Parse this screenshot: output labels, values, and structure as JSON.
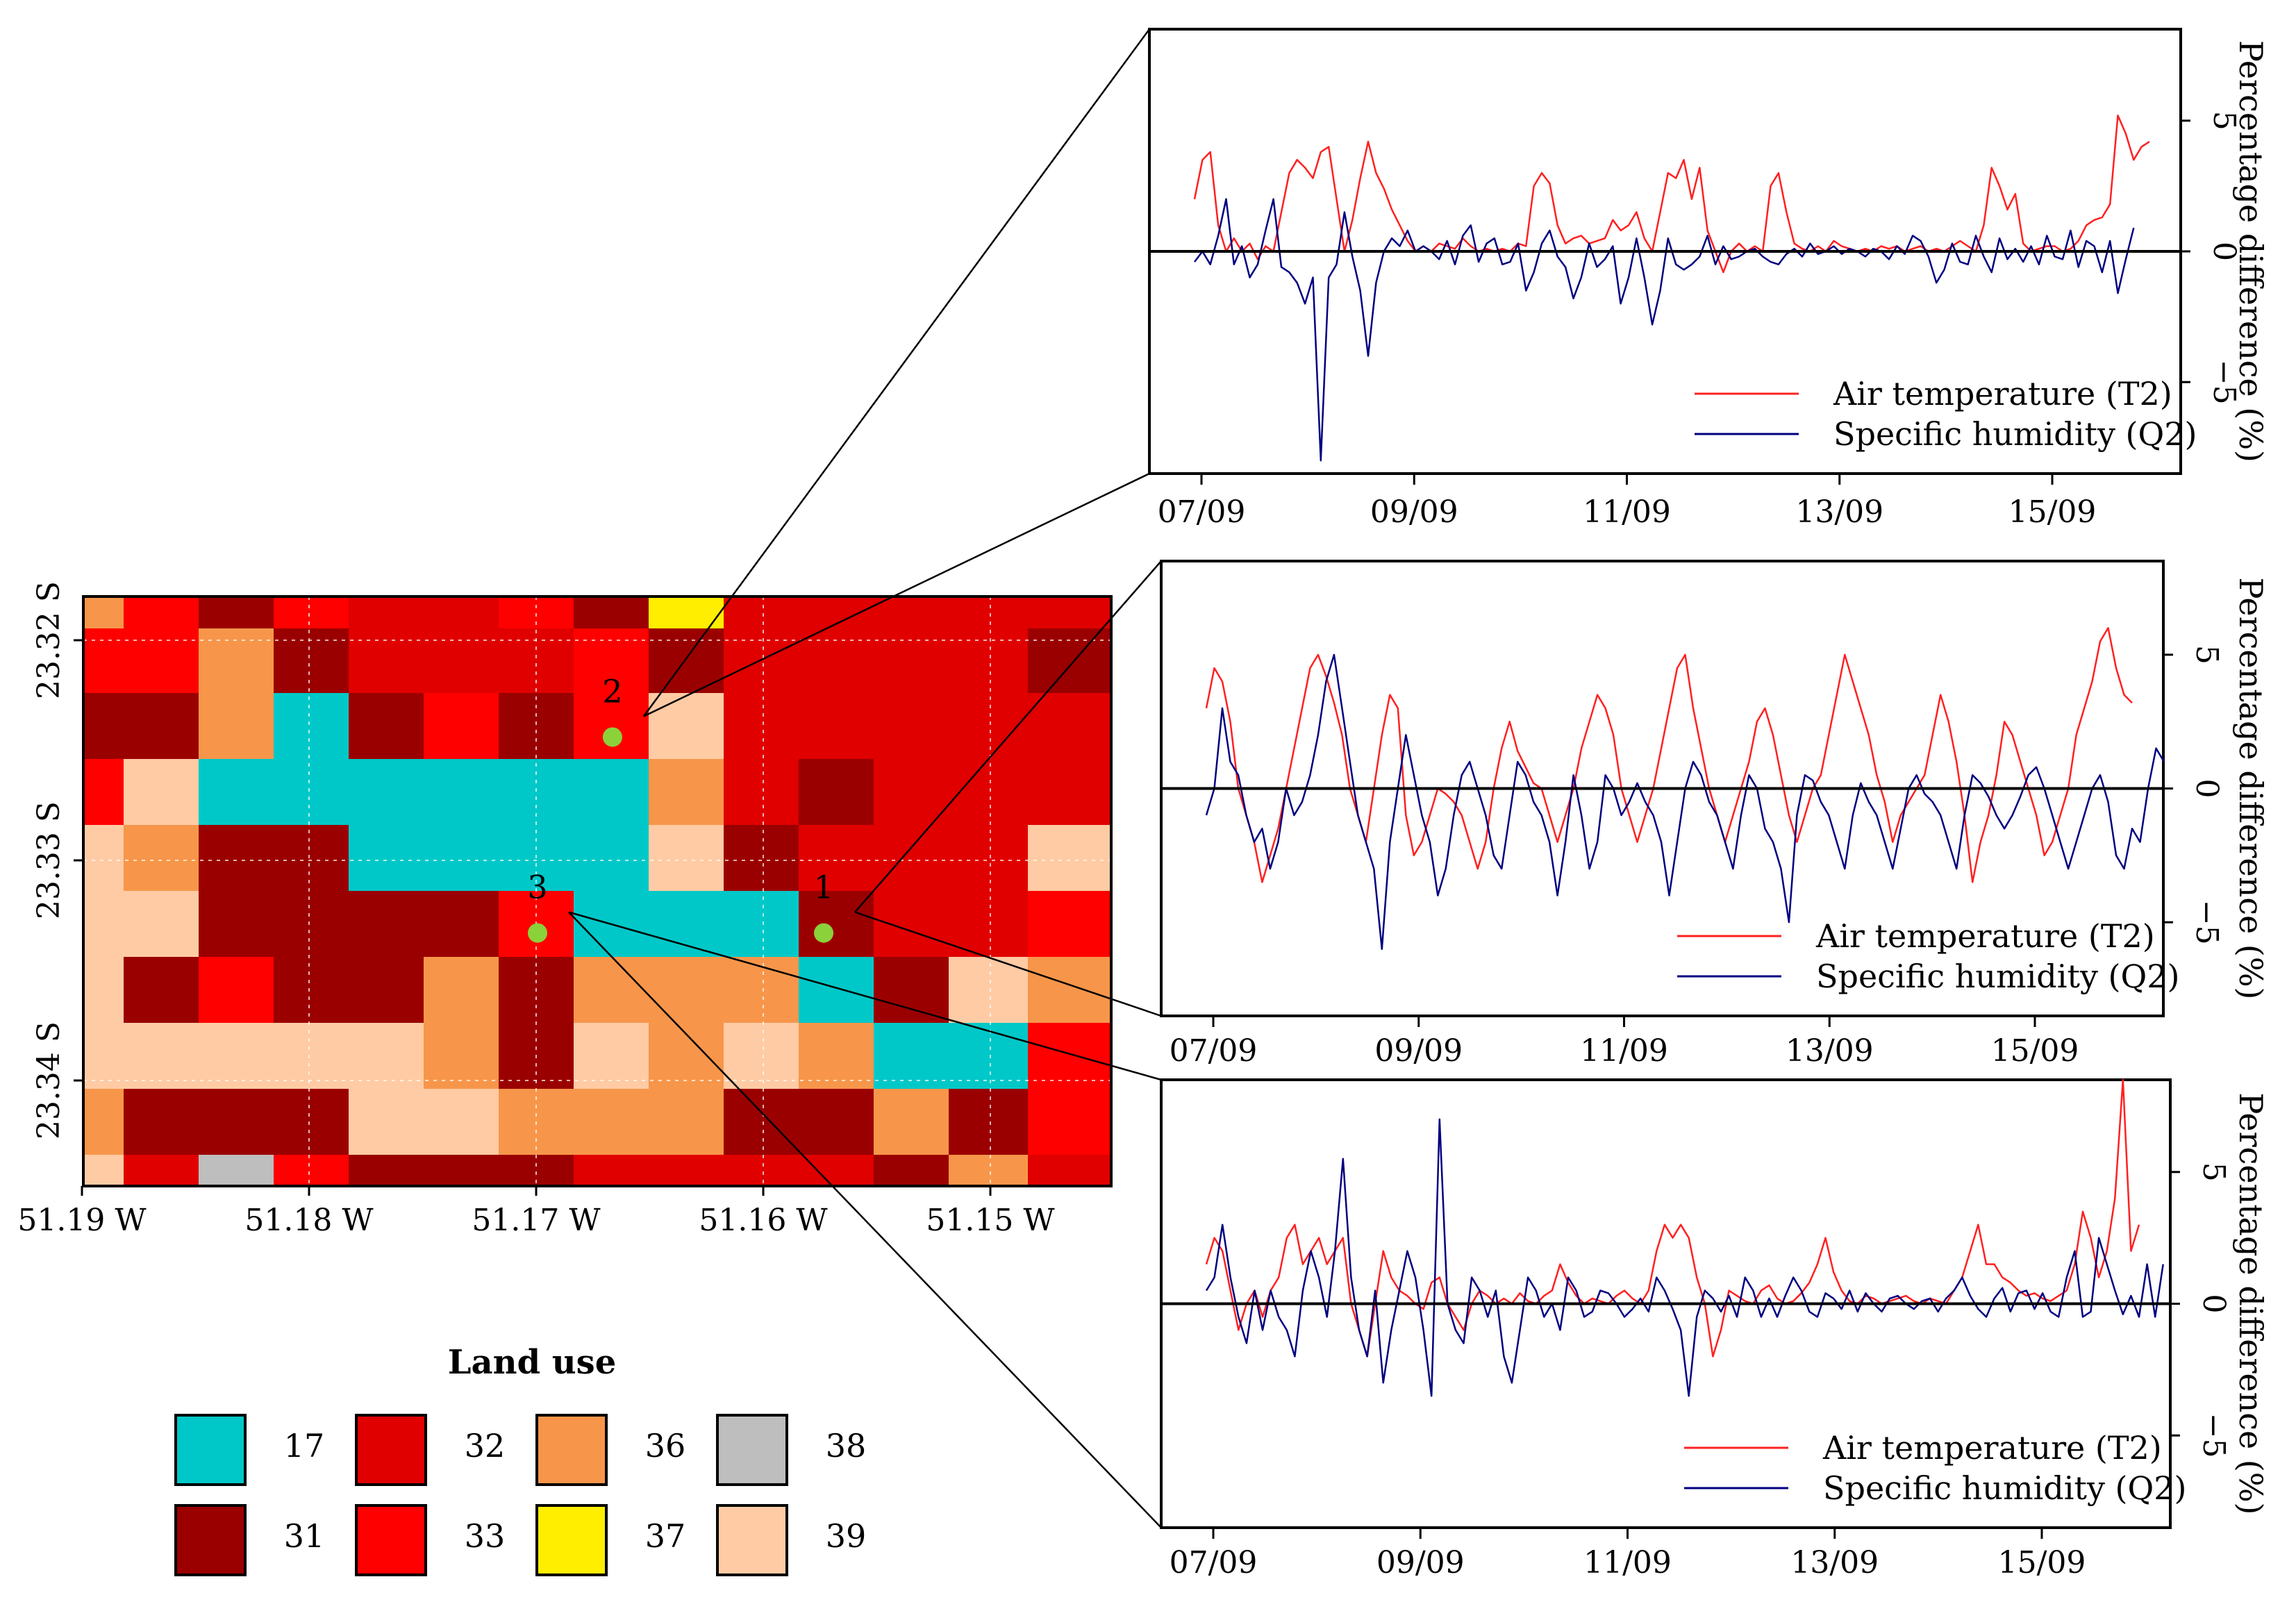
{
  "map": {
    "x_ticks": [
      "51.19 W",
      "51.18 W",
      "51.17 W",
      "51.16 W",
      "51.15 W"
    ],
    "y_ticks": [
      "23.32 S",
      "23.33 S",
      "23.34 S"
    ],
    "points": [
      {
        "label": "1",
        "lon": -51.1574,
        "lat": -23.3333
      },
      {
        "label": "2",
        "lon": -51.1667,
        "lat": -23.3244
      },
      {
        "label": "3",
        "lon": -51.17,
        "lat": -23.3333
      }
    ],
    "point_color": "#8bd13a",
    "grid": [
      "eacccaccccaccbaccc",
      "eaabaaacccaaaaaa",
      "abbeababcca",
      "aa"
    ]
  },
  "land_use": {
    "title": "Land use",
    "classes": [
      {
        "code": "17",
        "color": "#00c8c8"
      },
      {
        "code": "31",
        "color": "#9b0000"
      },
      {
        "code": "32",
        "color": "#e00000"
      },
      {
        "code": "33",
        "color": "#ff0000"
      },
      {
        "code": "36",
        "color": "#f7964a"
      },
      {
        "code": "37",
        "color": "#ffee00"
      },
      {
        "code": "38",
        "color": "#bebebe"
      },
      {
        "code": "39",
        "color": "#ffcba4"
      }
    ]
  },
  "chart_data": [
    {
      "type": "line",
      "point": "2",
      "ylabel": "Percentage difference (%)",
      "ylim": [
        -8.5,
        8.5
      ],
      "yticks": [
        5,
        0,
        -5
      ],
      "ytick_labels": [
        "5",
        "0",
        "−5"
      ],
      "xticks": [
        "07/09",
        "09/09",
        "11/09",
        "13/09",
        "15/09"
      ],
      "series": [
        {
          "name": "Air temperature (T2)",
          "color": "#ff2020",
          "values": [
            2,
            3.5,
            3.8,
            1,
            0,
            0.5,
            0,
            0.3,
            -0.3,
            0.2,
            0,
            1.5,
            3,
            3.5,
            3.2,
            2.8,
            3.8,
            4,
            2,
            0,
            1.2,
            2.8,
            4.2,
            3,
            2.4,
            1.6,
            1,
            0.4,
            0,
            0.2,
            0,
            0.3,
            0.2,
            0.1,
            0.5,
            0.2,
            0,
            0.1,
            0,
            0.1,
            0,
            0.3,
            0.2,
            2.5,
            3,
            2.6,
            1,
            0.3,
            0.5,
            0.6,
            0.3,
            0.4,
            0.5,
            1.2,
            0.8,
            1,
            1.5,
            0.5,
            0,
            1.5,
            3,
            2.8,
            3.5,
            2,
            3.2,
            0.8,
            0,
            -0.8,
            0,
            0.3,
            0,
            0.2,
            0,
            2.5,
            3,
            1.5,
            0.3,
            0.1,
            0,
            0.2,
            0,
            0.4,
            0.2,
            0.1,
            0,
            0.1,
            0,
            0.2,
            0.1,
            0.2,
            0,
            0.1,
            0.2,
            0,
            0.1,
            0,
            0.2,
            0.4,
            0.2,
            0,
            1,
            3.2,
            2.5,
            1.6,
            2.2,
            0.3,
            0,
            0.1,
            0.2,
            0.2,
            0,
            0.1,
            0.4,
            1,
            1.2,
            1.3,
            1.8,
            5.2,
            4.5,
            3.5,
            4,
            4.2
          ]
        },
        {
          "name": "Specific humidity (Q2)",
          "color": "#000080",
          "values": [
            -0.4,
            0,
            -0.5,
            0.6,
            2,
            -0.5,
            0.2,
            -1,
            -0.5,
            0.8,
            2,
            -0.6,
            -0.8,
            -1.2,
            -2,
            -1,
            -8,
            -1,
            -0.5,
            1.5,
            -0.2,
            -1.5,
            -4,
            -1.2,
            0,
            0.5,
            0.2,
            0.8,
            0,
            0.2,
            0,
            -0.3,
            0.4,
            -0.5,
            0.6,
            1,
            -0.4,
            0.3,
            0.5,
            -0.5,
            -0.4,
            0.3,
            -1.5,
            -0.8,
            0.3,
            0.8,
            -0.2,
            -0.6,
            -1.8,
            -1,
            0.3,
            -0.6,
            -0.3,
            0.2,
            -2,
            -1,
            0.5,
            -1,
            -2.8,
            -1.5,
            0.5,
            -0.5,
            -0.7,
            -0.5,
            -0.2,
            0.6,
            -0.5,
            0.2,
            -0.3,
            -0.2,
            0,
            0.1,
            -0.2,
            -0.4,
            -0.5,
            -0.1,
            0.1,
            -0.2,
            0.3,
            -0.1,
            0,
            0.2,
            -0.1,
            0.1,
            0,
            -0.2,
            0.1,
            0,
            -0.3,
            0.2,
            -0.1,
            0.6,
            0.4,
            -0.2,
            -1.2,
            -0.7,
            0.3,
            -0.4,
            -0.5,
            0.6,
            -0.2,
            -0.8,
            0.5,
            -0.3,
            0.1,
            -0.4,
            0.2,
            -0.5,
            0.6,
            -0.2,
            -0.3,
            0.8,
            -0.6,
            0.4,
            0.2,
            -0.8,
            0.4,
            -1.6,
            -0.3,
            0.9
          ]
        }
      ]
    },
    {
      "type": "line",
      "point": "1",
      "ylabel": "Percentage difference (%)",
      "ylim": [
        -8.5,
        8.5
      ],
      "yticks": [
        5,
        0,
        -5
      ],
      "ytick_labels": [
        "5",
        "0",
        "−5"
      ],
      "xticks": [
        "07/09",
        "09/09",
        "11/09",
        "13/09",
        "15/09"
      ],
      "series": [
        {
          "name": "Air temperature (T2)",
          "color": "#ff2020",
          "values": [
            3,
            4.5,
            4,
            2.5,
            0,
            -1,
            -2,
            -3.5,
            -2.5,
            -1.5,
            0,
            1.5,
            3,
            4.5,
            5,
            4.2,
            3.2,
            2,
            0,
            -1,
            -2,
            0,
            2,
            3.5,
            3,
            -1,
            -2.5,
            -2,
            -1,
            0,
            -0.2,
            -0.5,
            -1,
            -2,
            -3,
            -2,
            0,
            1.5,
            2.5,
            1.4,
            0.8,
            0.2,
            0,
            -1,
            -2,
            -1,
            0,
            1.5,
            2.5,
            3.5,
            3,
            2,
            0,
            -1,
            -2,
            -1,
            0,
            1.5,
            3,
            4.5,
            5,
            3,
            1.5,
            0,
            -1,
            -2,
            -1,
            0,
            1,
            2.5,
            3,
            2,
            0.5,
            -1,
            -2,
            -1,
            0,
            0.5,
            2,
            3.5,
            5,
            4,
            3,
            2,
            0.5,
            -0.5,
            -2,
            -1,
            -0.5,
            0,
            0.5,
            2,
            3.5,
            2.5,
            1,
            -1,
            -3.5,
            -2,
            -1,
            0.5,
            2.5,
            2,
            1,
            0,
            -1,
            -2.5,
            -2,
            -1,
            0,
            2,
            3,
            4,
            5.5,
            6,
            4.5,
            3.5,
            3.2
          ]
        },
        {
          "name": "Specific humidity (Q2)",
          "color": "#000080",
          "values": [
            -1,
            0,
            3,
            1,
            0.5,
            -1,
            -2,
            -1.5,
            -3,
            -2,
            0,
            -1,
            -0.5,
            0.5,
            2,
            4,
            5,
            3,
            1,
            -1,
            -2,
            -3,
            -6,
            -2,
            0,
            2,
            0.5,
            -1,
            -2,
            -4,
            -3,
            -1,
            0.5,
            1,
            0,
            -1,
            -2.5,
            -3,
            -1,
            1,
            0.5,
            -0.5,
            -1,
            -2,
            -4,
            -2,
            0.5,
            -1,
            -3,
            -2,
            0.5,
            0,
            -1,
            -0.5,
            0.2,
            -0.5,
            -1,
            -2,
            -4,
            -2,
            0,
            1,
            0.5,
            -0.5,
            -1,
            -2,
            -3,
            -1,
            0.5,
            0,
            -1.5,
            -2,
            -3,
            -5,
            -1,
            0.5,
            0.3,
            -0.5,
            -1,
            -2,
            -3,
            -1,
            0.2,
            -0.5,
            -1,
            -2,
            -3,
            -1.5,
            0,
            0.5,
            -0.2,
            -0.5,
            -1,
            -2,
            -3,
            -1,
            0.5,
            0.2,
            -0.3,
            -1,
            -1.5,
            -1,
            -0.3,
            0.5,
            0.8,
            0,
            -1,
            -2,
            -3,
            -2,
            -1,
            0,
            0.5,
            -0.5,
            -2.5,
            -3,
            -1.5,
            -2,
            0,
            1.5,
            1
          ]
        }
      ]
    },
    {
      "type": "line",
      "point": "3",
      "ylabel": "Percentage difference (%)",
      "ylim": [
        -8.5,
        8.5
      ],
      "yticks": [
        5,
        0,
        -5
      ],
      "ytick_labels": [
        "5",
        "0",
        "−5"
      ],
      "xticks": [
        "07/09",
        "09/09",
        "11/09",
        "13/09",
        "15/09"
      ],
      "series": [
        {
          "name": "Air temperature (T2)",
          "color": "#ff2020",
          "values": [
            1.5,
            2.5,
            2,
            0.5,
            -1,
            0,
            0.5,
            -0.5,
            0.5,
            1,
            2.5,
            3,
            1.5,
            2,
            2.5,
            1.5,
            2,
            2.5,
            0,
            -1,
            -2,
            0,
            2,
            1,
            0.5,
            0.3,
            0,
            -0.2,
            0.8,
            1,
            0,
            -0.5,
            -1,
            0,
            0.5,
            0.3,
            0,
            0.2,
            0,
            0.4,
            0.1,
            0,
            0.3,
            0.5,
            1.5,
            0.8,
            0.3,
            0,
            0.2,
            0.1,
            0,
            0.3,
            0.5,
            0.2,
            0,
            0.5,
            2,
            3,
            2.5,
            3,
            2.5,
            1,
            0,
            -2,
            -1,
            0.5,
            0.3,
            0.1,
            0,
            0.5,
            0.7,
            0.2,
            0,
            0.1,
            0.4,
            0.8,
            1.5,
            2.5,
            1.2,
            0.5,
            0.1,
            0,
            0.3,
            0.2,
            0,
            0.1,
            0.2,
            0.3,
            0.1,
            0,
            0.2,
            0.1,
            0,
            0.5,
            1,
            2,
            3,
            1.5,
            1.5,
            1,
            0.8,
            0.5,
            0.3,
            0.4,
            0.2,
            0.1,
            0.3,
            0.5,
            1.5,
            3.5,
            2.5,
            1,
            2,
            4,
            8.5,
            2,
            3
          ]
        },
        {
          "name": "Specific humidity (Q2)",
          "color": "#000080",
          "values": [
            0.5,
            1,
            3,
            1,
            -0.5,
            -1.5,
            0.5,
            -1,
            0.5,
            -0.5,
            -1,
            -2,
            0.5,
            2,
            1,
            -0.5,
            2,
            5.5,
            1,
            -1,
            -2,
            0.5,
            -3,
            -1,
            0.5,
            2,
            1,
            -1,
            -3.5,
            7,
            0,
            -1,
            -1.5,
            1,
            0.5,
            -0.5,
            0.5,
            -2,
            -3,
            -1,
            1,
            0.5,
            -0.5,
            0,
            -1,
            1,
            0.5,
            -0.5,
            -0.3,
            0.5,
            0.4,
            0,
            -0.5,
            -0.2,
            0.2,
            -0.3,
            1,
            0.5,
            -0.2,
            -1,
            -3.5,
            -0.5,
            0.5,
            0.2,
            -0.3,
            0.3,
            -0.5,
            1,
            0.5,
            -0.5,
            0.2,
            -0.5,
            0.3,
            1,
            0.5,
            -0.3,
            -0.5,
            0.4,
            0.2,
            -0.2,
            0.5,
            -0.3,
            0.4,
            0,
            -0.3,
            0.2,
            0.3,
            0,
            -0.2,
            0.1,
            0.2,
            -0.3,
            0.2,
            0.5,
            1,
            0.3,
            -0.2,
            -0.5,
            0.2,
            0.6,
            -0.3,
            0.4,
            0.5,
            -0.2,
            0.4,
            -0.3,
            -0.5,
            1,
            2,
            -0.5,
            -0.3,
            2.5,
            1.5,
            0.5,
            -0.4,
            0.3,
            -0.5,
            1.5,
            -0.5,
            1.5
          ]
        }
      ]
    }
  ]
}
